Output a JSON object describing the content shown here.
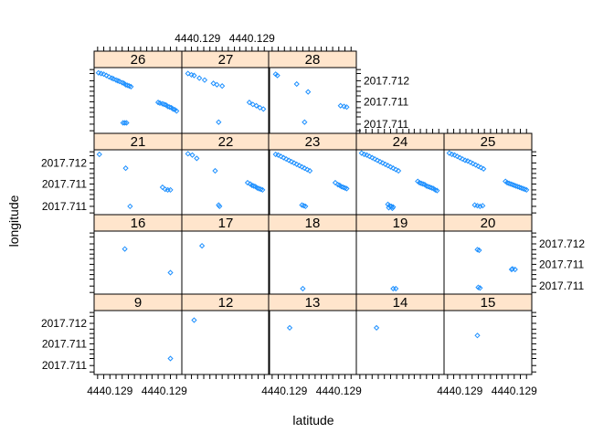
{
  "chart_data": {
    "type": "scatter",
    "xlabel": "latitude",
    "ylabel": "longitude",
    "grid": false,
    "colors": {
      "points": "#1E90FF",
      "strip": "#FFE5CC",
      "frame": "#000000"
    },
    "layout_rows": [
      [
        "26",
        "27",
        "28"
      ],
      [
        "21",
        "22",
        "23",
        "24",
        "25"
      ],
      [
        "16",
        "17",
        "18",
        "19",
        "20"
      ],
      [
        "9",
        "12",
        "13",
        "14",
        "15"
      ]
    ],
    "x_ticks": {
      "labels": [
        "4440.129",
        "4440.129"
      ],
      "values": [
        0.18,
        0.8
      ],
      "minor": [
        0.04,
        0.11,
        0.25,
        0.32,
        0.39,
        0.46,
        0.53,
        0.6,
        0.66,
        0.73,
        0.87,
        0.94
      ]
    },
    "y_ticks": {
      "labels": [
        "2017.712",
        "2017.711",
        "2017.711"
      ],
      "values": [
        0.8,
        0.48,
        0.14
      ],
      "minor": [
        0.04,
        0.25,
        0.32,
        0.39,
        0.57,
        0.64,
        0.71,
        0.91,
        0.97
      ]
    },
    "panels": [
      {
        "id": "26",
        "points": [
          [
            0.05,
            0.92
          ],
          [
            0.08,
            0.91
          ],
          [
            0.11,
            0.9
          ],
          [
            0.14,
            0.88
          ],
          [
            0.17,
            0.86
          ],
          [
            0.2,
            0.84
          ],
          [
            0.22,
            0.83
          ],
          [
            0.25,
            0.81
          ],
          [
            0.27,
            0.8
          ],
          [
            0.29,
            0.79
          ],
          [
            0.32,
            0.77
          ],
          [
            0.34,
            0.76
          ],
          [
            0.36,
            0.74
          ],
          [
            0.38,
            0.73
          ],
          [
            0.4,
            0.72
          ],
          [
            0.42,
            0.71
          ],
          [
            0.33,
            0.16
          ],
          [
            0.35,
            0.16
          ],
          [
            0.37,
            0.16
          ],
          [
            0.73,
            0.47
          ],
          [
            0.75,
            0.46
          ],
          [
            0.78,
            0.45
          ],
          [
            0.8,
            0.44
          ],
          [
            0.82,
            0.43
          ],
          [
            0.84,
            0.41
          ],
          [
            0.86,
            0.4
          ],
          [
            0.88,
            0.39
          ],
          [
            0.9,
            0.37
          ],
          [
            0.92,
            0.36
          ],
          [
            0.94,
            0.34
          ]
        ]
      },
      {
        "id": "27",
        "points": [
          [
            0.07,
            0.91
          ],
          [
            0.11,
            0.89
          ],
          [
            0.14,
            0.88
          ],
          [
            0.2,
            0.84
          ],
          [
            0.26,
            0.81
          ],
          [
            0.36,
            0.76
          ],
          [
            0.4,
            0.74
          ],
          [
            0.46,
            0.72
          ],
          [
            0.42,
            0.17
          ],
          [
            0.77,
            0.47
          ],
          [
            0.81,
            0.44
          ],
          [
            0.85,
            0.42
          ],
          [
            0.89,
            0.39
          ],
          [
            0.93,
            0.37
          ]
        ]
      },
      {
        "id": "28",
        "points": [
          [
            0.08,
            0.9
          ],
          [
            0.1,
            0.88
          ],
          [
            0.32,
            0.75
          ],
          [
            0.45,
            0.63
          ],
          [
            0.41,
            0.17
          ],
          [
            0.82,
            0.42
          ],
          [
            0.86,
            0.41
          ],
          [
            0.89,
            0.4
          ]
        ]
      },
      {
        "id": "21",
        "points": [
          [
            0.06,
            0.93
          ],
          [
            0.36,
            0.72
          ],
          [
            0.41,
            0.14
          ],
          [
            0.78,
            0.43
          ],
          [
            0.81,
            0.4
          ],
          [
            0.84,
            0.39
          ],
          [
            0.87,
            0.39
          ]
        ]
      },
      {
        "id": "22",
        "points": [
          [
            0.07,
            0.94
          ],
          [
            0.12,
            0.92
          ],
          [
            0.17,
            0.87
          ],
          [
            0.38,
            0.68
          ],
          [
            0.42,
            0.16
          ],
          [
            0.43,
            0.14
          ],
          [
            0.75,
            0.5
          ],
          [
            0.78,
            0.48
          ],
          [
            0.8,
            0.46
          ],
          [
            0.82,
            0.45
          ],
          [
            0.84,
            0.44
          ],
          [
            0.86,
            0.42
          ],
          [
            0.88,
            0.41
          ],
          [
            0.9,
            0.4
          ],
          [
            0.92,
            0.39
          ]
        ]
      },
      {
        "id": "23",
        "points": [
          [
            0.08,
            0.93
          ],
          [
            0.11,
            0.92
          ],
          [
            0.14,
            0.9
          ],
          [
            0.17,
            0.88
          ],
          [
            0.2,
            0.86
          ],
          [
            0.23,
            0.84
          ],
          [
            0.26,
            0.82
          ],
          [
            0.29,
            0.8
          ],
          [
            0.32,
            0.78
          ],
          [
            0.35,
            0.76
          ],
          [
            0.38,
            0.74
          ],
          [
            0.41,
            0.72
          ],
          [
            0.44,
            0.7
          ],
          [
            0.47,
            0.68
          ],
          [
            0.38,
            0.16
          ],
          [
            0.4,
            0.15
          ],
          [
            0.42,
            0.14
          ],
          [
            0.76,
            0.5
          ],
          [
            0.79,
            0.47
          ],
          [
            0.81,
            0.46
          ],
          [
            0.83,
            0.44
          ],
          [
            0.85,
            0.43
          ],
          [
            0.87,
            0.42
          ],
          [
            0.89,
            0.41
          ]
        ]
      },
      {
        "id": "24",
        "points": [
          [
            0.06,
            0.95
          ],
          [
            0.09,
            0.93
          ],
          [
            0.12,
            0.92
          ],
          [
            0.15,
            0.9
          ],
          [
            0.18,
            0.88
          ],
          [
            0.21,
            0.86
          ],
          [
            0.24,
            0.84
          ],
          [
            0.27,
            0.82
          ],
          [
            0.3,
            0.8
          ],
          [
            0.33,
            0.78
          ],
          [
            0.36,
            0.76
          ],
          [
            0.39,
            0.74
          ],
          [
            0.42,
            0.72
          ],
          [
            0.45,
            0.7
          ],
          [
            0.48,
            0.68
          ],
          [
            0.36,
            0.17
          ],
          [
            0.38,
            0.15
          ],
          [
            0.4,
            0.14
          ],
          [
            0.42,
            0.13
          ],
          [
            0.37,
            0.12
          ],
          [
            0.41,
            0.11
          ],
          [
            0.7,
            0.52
          ],
          [
            0.72,
            0.5
          ],
          [
            0.74,
            0.49
          ],
          [
            0.76,
            0.48
          ],
          [
            0.78,
            0.47
          ],
          [
            0.8,
            0.45
          ],
          [
            0.82,
            0.44
          ],
          [
            0.84,
            0.43
          ],
          [
            0.86,
            0.42
          ],
          [
            0.88,
            0.41
          ],
          [
            0.9,
            0.39
          ],
          [
            0.92,
            0.38
          ]
        ]
      },
      {
        "id": "25",
        "points": [
          [
            0.06,
            0.95
          ],
          [
            0.09,
            0.93
          ],
          [
            0.12,
            0.92
          ],
          [
            0.15,
            0.9
          ],
          [
            0.18,
            0.88
          ],
          [
            0.21,
            0.86
          ],
          [
            0.24,
            0.84
          ],
          [
            0.27,
            0.83
          ],
          [
            0.3,
            0.81
          ],
          [
            0.33,
            0.79
          ],
          [
            0.36,
            0.77
          ],
          [
            0.39,
            0.75
          ],
          [
            0.42,
            0.73
          ],
          [
            0.45,
            0.71
          ],
          [
            0.35,
            0.16
          ],
          [
            0.38,
            0.15
          ],
          [
            0.41,
            0.14
          ],
          [
            0.44,
            0.15
          ],
          [
            0.7,
            0.52
          ],
          [
            0.72,
            0.5
          ],
          [
            0.74,
            0.49
          ],
          [
            0.76,
            0.48
          ],
          [
            0.78,
            0.47
          ],
          [
            0.8,
            0.46
          ],
          [
            0.82,
            0.45
          ],
          [
            0.84,
            0.44
          ],
          [
            0.86,
            0.43
          ],
          [
            0.88,
            0.42
          ],
          [
            0.9,
            0.41
          ],
          [
            0.92,
            0.4
          ],
          [
            0.94,
            0.39
          ]
        ]
      },
      {
        "id": "16",
        "points": [
          [
            0.35,
            0.72
          ],
          [
            0.87,
            0.35
          ]
        ]
      },
      {
        "id": "17",
        "points": [
          [
            0.23,
            0.77
          ]
        ]
      },
      {
        "id": "18",
        "points": [
          [
            0.39,
            0.1
          ]
        ]
      },
      {
        "id": "19",
        "points": [
          [
            0.42,
            0.1
          ],
          [
            0.45,
            0.1
          ]
        ]
      },
      {
        "id": "20",
        "points": [
          [
            0.38,
            0.71
          ],
          [
            0.4,
            0.7
          ],
          [
            0.77,
            0.4
          ],
          [
            0.78,
            0.41
          ],
          [
            0.81,
            0.4
          ],
          [
            0.39,
            0.12
          ],
          [
            0.41,
            0.11
          ]
        ]
      },
      {
        "id": "9",
        "points": [
          [
            0.87,
            0.25
          ]
        ]
      },
      {
        "id": "12",
        "points": [
          [
            0.14,
            0.85
          ]
        ]
      },
      {
        "id": "13",
        "points": [
          [
            0.24,
            0.73
          ]
        ]
      },
      {
        "id": "14",
        "points": [
          [
            0.23,
            0.73
          ]
        ]
      },
      {
        "id": "15",
        "points": [
          [
            0.38,
            0.61
          ]
        ]
      }
    ]
  }
}
